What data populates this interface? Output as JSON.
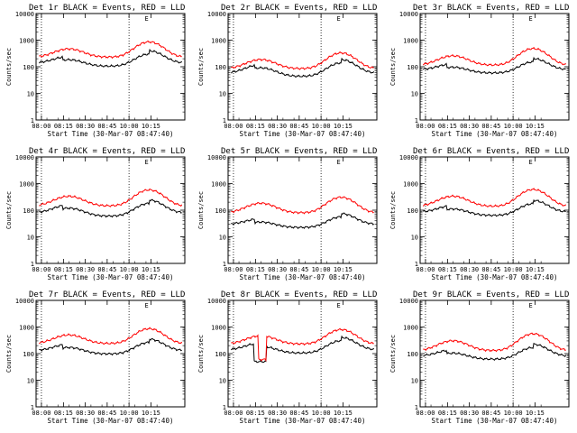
{
  "colors": {
    "background": "#ffffff",
    "axes": "#000000",
    "events": "#000000",
    "lld": "#ff0000"
  },
  "chart_data": [
    {
      "type": "line",
      "title": "Det 1r BLACK = Events, RED = LLD",
      "xlabel": "Start Time (30-Mar-07 08:47:40)",
      "ylabel": "Counts/sec",
      "yscale": "log",
      "ylim": [
        1,
        10000
      ],
      "ytick_labels": [
        "1",
        "10",
        "100",
        "1000",
        "10000"
      ],
      "xtick_labels": [
        "08:00",
        "08:15",
        "08:30",
        "08:45",
        "10:00",
        "10:15"
      ],
      "marker_label": "E",
      "vlines_at_xticks": [
        0,
        4
      ],
      "series": [
        {
          "name": "Events",
          "color": "#000000",
          "base": 140,
          "bump": [
            0.75,
            1.0,
            1.85
          ],
          "step": [
            0.18,
            0.76,
            0.75
          ]
        },
        {
          "name": "LLD",
          "color": "#ff0000",
          "base": 230,
          "bump": [
            1.05,
            1.0,
            2.75
          ],
          "step": null
        }
      ]
    },
    {
      "type": "line",
      "title": "Det 2r BLACK = Events, RED = LLD",
      "xlabel": "Start Time (30-Mar-07 08:47:40)",
      "ylabel": "Counts/sec",
      "yscale": "log",
      "ylim": [
        1,
        10000
      ],
      "ytick_labels": [
        "1",
        "10",
        "100",
        "1000",
        "10000"
      ],
      "xtick_labels": [
        "08:00",
        "08:15",
        "08:30",
        "08:45",
        "10:00",
        "10:15"
      ],
      "marker_label": "E",
      "vlines_at_xticks": [
        0,
        4
      ],
      "series": [
        {
          "name": "Events",
          "color": "#000000",
          "base": 58,
          "bump": [
            1.1,
            1.0,
            2.2
          ],
          "step": [
            0.18,
            0.76,
            0.75
          ]
        },
        {
          "name": "LLD",
          "color": "#ff0000",
          "base": 85,
          "bump": [
            1.2,
            1.0,
            2.9
          ],
          "step": null
        }
      ]
    },
    {
      "type": "line",
      "title": "Det 3r BLACK = Events, RED = LLD",
      "xlabel": "Start Time (30-Mar-07 08:47:40)",
      "ylabel": "Counts/sec",
      "yscale": "log",
      "ylim": [
        1,
        10000
      ],
      "ytick_labels": [
        "1",
        "10",
        "100",
        "1000",
        "10000"
      ],
      "xtick_labels": [
        "08:00",
        "08:15",
        "08:30",
        "08:45",
        "10:00",
        "10:15"
      ],
      "marker_label": "E",
      "vlines_at_xticks": [
        0,
        4
      ],
      "series": [
        {
          "name": "Events",
          "color": "#000000",
          "base": 78,
          "bump": [
            0.65,
            1.0,
            1.6
          ],
          "step": [
            0.18,
            0.76,
            0.75
          ]
        },
        {
          "name": "LLD",
          "color": "#ff0000",
          "base": 115,
          "bump": [
            1.25,
            1.0,
            3.2
          ],
          "step": null
        }
      ]
    },
    {
      "type": "line",
      "title": "Det 4r BLACK = Events, RED = LLD",
      "xlabel": "Start Time (30-Mar-07 08:47:40)",
      "ylabel": "Counts/sec",
      "yscale": "log",
      "ylim": [
        1,
        10000
      ],
      "ytick_labels": [
        "1",
        "10",
        "100",
        "1000",
        "10000"
      ],
      "xtick_labels": [
        "08:00",
        "08:15",
        "08:30",
        "08:45",
        "10:00",
        "10:15"
      ],
      "marker_label": "E",
      "vlines_at_xticks": [
        0,
        4
      ],
      "series": [
        {
          "name": "Events",
          "color": "#000000",
          "base": 80,
          "bump": [
            1.0,
            1.0,
            2.0
          ],
          "step": [
            0.18,
            0.76,
            0.75
          ]
        },
        {
          "name": "LLD",
          "color": "#ff0000",
          "base": 145,
          "bump": [
            1.3,
            1.0,
            3.0
          ],
          "step": null
        }
      ]
    },
    {
      "type": "line",
      "title": "Det 5r BLACK = Events, RED = LLD",
      "xlabel": "Start Time (30-Mar-07 08:47:40)",
      "ylabel": "Counts/sec",
      "yscale": "log",
      "ylim": [
        1,
        10000
      ],
      "ytick_labels": [
        "1",
        "10",
        "100",
        "1000",
        "10000"
      ],
      "xtick_labels": [
        "08:00",
        "08:15",
        "08:30",
        "08:45",
        "10:00",
        "10:15"
      ],
      "marker_label": "E",
      "vlines_at_xticks": [
        0,
        4
      ],
      "series": [
        {
          "name": "Events",
          "color": "#000000",
          "base": 30,
          "bump": [
            0.6,
            1.0,
            1.5
          ],
          "step": [
            0.18,
            0.76,
            0.75
          ]
        },
        {
          "name": "LLD",
          "color": "#ff0000",
          "base": 80,
          "bump": [
            1.3,
            1.0,
            2.85
          ],
          "step": null
        }
      ]
    },
    {
      "type": "line",
      "title": "Det 6r BLACK = Events, RED = LLD",
      "xlabel": "Start Time (30-Mar-07 08:47:40)",
      "ylabel": "Counts/sec",
      "yscale": "log",
      "ylim": [
        1,
        10000
      ],
      "ytick_labels": [
        "1",
        "10",
        "100",
        "1000",
        "10000"
      ],
      "xtick_labels": [
        "08:00",
        "08:15",
        "08:30",
        "08:45",
        "10:00",
        "10:15"
      ],
      "marker_label": "E",
      "vlines_at_xticks": [
        0,
        4
      ],
      "series": [
        {
          "name": "Events",
          "color": "#000000",
          "base": 85,
          "bump": [
            0.75,
            1.0,
            1.75
          ],
          "step": [
            0.18,
            0.76,
            0.75
          ]
        },
        {
          "name": "LLD",
          "color": "#ff0000",
          "base": 140,
          "bump": [
            1.4,
            1.0,
            3.3
          ],
          "step": null
        }
      ]
    },
    {
      "type": "line",
      "title": "Det 7r BLACK = Events, RED = LLD",
      "xlabel": "Start Time (30-Mar-07 08:47:40)",
      "ylabel": "Counts/sec",
      "yscale": "log",
      "ylim": [
        1,
        10000
      ],
      "ytick_labels": [
        "1",
        "10",
        "100",
        "1000",
        "10000"
      ],
      "xtick_labels": [
        "08:00",
        "08:15",
        "08:30",
        "08:45",
        "10:00",
        "10:15"
      ],
      "marker_label": "E",
      "vlines_at_xticks": [
        0,
        4
      ],
      "series": [
        {
          "name": "Events",
          "color": "#000000",
          "base": 130,
          "bump": [
            0.75,
            1.0,
            1.7
          ],
          "step": [
            0.18,
            0.76,
            0.75
          ]
        },
        {
          "name": "LLD",
          "color": "#ff0000",
          "base": 240,
          "bump": [
            1.1,
            1.0,
            2.6
          ],
          "step": null
        }
      ]
    },
    {
      "type": "line",
      "title": "Det 8r BLACK = Events, RED = LLD",
      "xlabel": "Start Time (30-Mar-07 08:47:40)",
      "ylabel": "Counts/sec",
      "yscale": "log",
      "ylim": [
        1,
        10000
      ],
      "ytick_labels": [
        "1",
        "10",
        "100",
        "1000",
        "10000"
      ],
      "xtick_labels": [
        "08:00",
        "08:15",
        "08:30",
        "08:45",
        "10:00",
        "10:15"
      ],
      "marker_label": "E",
      "vlines_at_xticks": [
        0,
        4
      ],
      "series": [
        {
          "name": "Events",
          "color": "#000000",
          "base": 140,
          "bump": [
            0.8,
            1.0,
            1.9
          ],
          "step": [
            0.18,
            0.76,
            0.75
          ],
          "dip": [
            0.17,
            0.26,
            50
          ]
        },
        {
          "name": "LLD",
          "color": "#ff0000",
          "base": 230,
          "bump": [
            1.05,
            1.0,
            2.5
          ],
          "step": null,
          "dip": [
            0.2,
            0.26,
            60
          ]
        }
      ]
    },
    {
      "type": "line",
      "title": "Det 9r BLACK = Events, RED = LLD",
      "xlabel": "Start Time (30-Mar-07 08:47:40)",
      "ylabel": "Counts/sec",
      "yscale": "log",
      "ylim": [
        1,
        10000
      ],
      "ytick_labels": [
        "1",
        "10",
        "100",
        "1000",
        "10000"
      ],
      "xtick_labels": [
        "08:00",
        "08:15",
        "08:30",
        "08:45",
        "10:00",
        "10:15"
      ],
      "marker_label": "E",
      "vlines_at_xticks": [
        0,
        4
      ],
      "series": [
        {
          "name": "Events",
          "color": "#000000",
          "base": 82,
          "bump": [
            0.7,
            1.0,
            1.75
          ],
          "step": [
            0.18,
            0.76,
            0.75
          ]
        },
        {
          "name": "LLD",
          "color": "#ff0000",
          "base": 130,
          "bump": [
            1.35,
            1.0,
            3.3
          ],
          "step": null
        }
      ]
    }
  ]
}
